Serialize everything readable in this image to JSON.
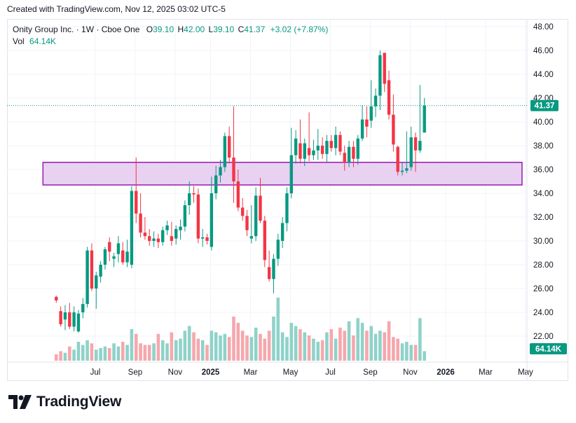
{
  "header": {
    "text": "Created with TradingView.com, Nov 12, 2025 03:02 UTC-5"
  },
  "legend": {
    "symbol": "Onity Group Inc. · 1W · Cboe One",
    "o_label": "O",
    "o_value": "39.10",
    "h_label": "H",
    "h_value": "42.00",
    "l_label": "L",
    "l_value": "39.10",
    "c_label": "C",
    "c_value": "41.37",
    "change": "+3.02 (+7.87%)",
    "vol_label": "Vol",
    "vol_value": "64.14K"
  },
  "footer": {
    "brand": "TradingView"
  },
  "colors": {
    "up": "#089981",
    "down": "#f23645",
    "vol_up": "#8fd2c9",
    "vol_down": "#f5a8ad",
    "zone_fill": "#e9d1f2",
    "zone_stroke": "#9c27b0"
  },
  "chart_data": {
    "type": "candlestick",
    "y_axis": {
      "min": 20.2,
      "max": 48.8,
      "ticks": [
        22,
        24,
        26,
        28,
        30,
        32,
        34,
        36,
        38,
        40,
        42,
        44,
        46,
        48
      ],
      "side": "right"
    },
    "x_axis": {
      "labels": [
        "Jul",
        "Sep",
        "Nov",
        "2025",
        "Mar",
        "May",
        "Jul",
        "Sep",
        "Nov",
        "2026",
        "Mar",
        "May"
      ],
      "label_bar_index": [
        5,
        14,
        23,
        31,
        40,
        49,
        58,
        67,
        76,
        84,
        93,
        102
      ]
    },
    "last_price": {
      "value": 41.37,
      "label": "41.37"
    },
    "volume_label": "64.14K",
    "zone": {
      "from_bar": -3,
      "to_bar": 105,
      "low": 34.7,
      "high": 36.6
    },
    "candles": [
      {
        "o": 25.3,
        "h": 25.4,
        "l": 24.8,
        "c": 25.0,
        "v": 0.2
      },
      {
        "o": 24.1,
        "h": 24.5,
        "l": 22.8,
        "c": 23.0,
        "v": 0.3
      },
      {
        "o": 23.4,
        "h": 24.6,
        "l": 22.5,
        "c": 24.0,
        "v": 0.25
      },
      {
        "o": 24.0,
        "h": 24.8,
        "l": 22.6,
        "c": 22.8,
        "v": 0.45
      },
      {
        "o": 22.8,
        "h": 24.5,
        "l": 22.4,
        "c": 24.0,
        "v": 0.35
      },
      {
        "o": 22.4,
        "h": 24.2,
        "l": 22.3,
        "c": 23.9,
        "v": 0.6
      },
      {
        "o": 24.0,
        "h": 25.2,
        "l": 23.5,
        "c": 24.7,
        "v": 0.5
      },
      {
        "o": 24.7,
        "h": 29.5,
        "l": 24.4,
        "c": 29.2,
        "v": 0.65
      },
      {
        "o": 29.2,
        "h": 29.8,
        "l": 25.8,
        "c": 26.0,
        "v": 0.55
      },
      {
        "o": 26.0,
        "h": 27.4,
        "l": 24.3,
        "c": 27.1,
        "v": 0.35
      },
      {
        "o": 27.0,
        "h": 28.3,
        "l": 26.5,
        "c": 28.0,
        "v": 0.4
      },
      {
        "o": 28.0,
        "h": 29.5,
        "l": 27.6,
        "c": 29.3,
        "v": 0.45
      },
      {
        "o": 29.9,
        "h": 30.3,
        "l": 28.3,
        "c": 29.1,
        "v": 0.4
      },
      {
        "o": 28.5,
        "h": 29.0,
        "l": 27.8,
        "c": 28.7,
        "v": 0.55
      },
      {
        "o": 28.9,
        "h": 30.4,
        "l": 28.2,
        "c": 29.8,
        "v": 0.45
      },
      {
        "o": 29.2,
        "h": 29.9,
        "l": 28.0,
        "c": 28.2,
        "v": 0.6
      },
      {
        "o": 28.2,
        "h": 30.1,
        "l": 27.8,
        "c": 29.1,
        "v": 0.5
      },
      {
        "o": 28.0,
        "h": 34.6,
        "l": 27.7,
        "c": 34.2,
        "v": 1.0
      },
      {
        "o": 34.2,
        "h": 37.0,
        "l": 31.5,
        "c": 32.3,
        "v": 0.85
      },
      {
        "o": 32.3,
        "h": 34.0,
        "l": 30.3,
        "c": 30.7,
        "v": 0.55
      },
      {
        "o": 30.7,
        "h": 32.0,
        "l": 30.1,
        "c": 30.4,
        "v": 0.5
      },
      {
        "o": 30.4,
        "h": 31.0,
        "l": 29.6,
        "c": 30.0,
        "v": 0.5
      },
      {
        "o": 30.0,
        "h": 30.8,
        "l": 29.5,
        "c": 30.2,
        "v": 0.55
      },
      {
        "o": 30.2,
        "h": 30.6,
        "l": 29.4,
        "c": 29.9,
        "v": 0.85
      },
      {
        "o": 29.9,
        "h": 31.2,
        "l": 29.6,
        "c": 30.9,
        "v": 0.65
      },
      {
        "o": 30.9,
        "h": 31.7,
        "l": 30.5,
        "c": 31.3,
        "v": 0.55
      },
      {
        "o": 30.4,
        "h": 31.6,
        "l": 29.6,
        "c": 30.0,
        "v": 0.9
      },
      {
        "o": 30.2,
        "h": 31.3,
        "l": 29.7,
        "c": 31.0,
        "v": 0.65
      },
      {
        "o": 30.9,
        "h": 31.8,
        "l": 30.1,
        "c": 31.2,
        "v": 0.7
      },
      {
        "o": 31.2,
        "h": 33.4,
        "l": 30.8,
        "c": 33.0,
        "v": 0.95
      },
      {
        "o": 33.0,
        "h": 35.0,
        "l": 32.2,
        "c": 34.0,
        "v": 1.1
      },
      {
        "o": 34.0,
        "h": 34.6,
        "l": 33.2,
        "c": 33.9,
        "v": 0.9
      },
      {
        "o": 33.9,
        "h": 34.4,
        "l": 29.8,
        "c": 30.2,
        "v": 0.7
      },
      {
        "o": 30.2,
        "h": 31.0,
        "l": 29.5,
        "c": 30.3,
        "v": 0.65
      },
      {
        "o": 30.3,
        "h": 30.6,
        "l": 29.7,
        "c": 30.0,
        "v": 0.5
      },
      {
        "o": 29.5,
        "h": 35.4,
        "l": 29.2,
        "c": 34.0,
        "v": 0.95
      },
      {
        "o": 34.0,
        "h": 36.3,
        "l": 33.5,
        "c": 35.5,
        "v": 0.9
      },
      {
        "o": 35.5,
        "h": 36.8,
        "l": 34.9,
        "c": 36.2,
        "v": 0.8
      },
      {
        "o": 36.2,
        "h": 39.1,
        "l": 35.8,
        "c": 38.8,
        "v": 0.85
      },
      {
        "o": 38.8,
        "h": 39.6,
        "l": 36.5,
        "c": 37.0,
        "v": 0.75
      },
      {
        "o": 37.0,
        "h": 41.3,
        "l": 33.2,
        "c": 35.0,
        "v": 1.4
      },
      {
        "o": 35.0,
        "h": 36.0,
        "l": 32.5,
        "c": 32.8,
        "v": 1.2
      },
      {
        "o": 32.8,
        "h": 33.6,
        "l": 31.7,
        "c": 32.1,
        "v": 0.95
      },
      {
        "o": 32.1,
        "h": 32.6,
        "l": 30.4,
        "c": 30.9,
        "v": 0.8
      },
      {
        "o": 30.2,
        "h": 33.0,
        "l": 29.8,
        "c": 30.4,
        "v": 0.75
      },
      {
        "o": 30.4,
        "h": 34.5,
        "l": 30.0,
        "c": 33.8,
        "v": 1.05
      },
      {
        "o": 33.8,
        "h": 35.3,
        "l": 31.5,
        "c": 31.7,
        "v": 0.85
      },
      {
        "o": 31.7,
        "h": 32.1,
        "l": 27.8,
        "c": 28.4,
        "v": 0.7
      },
      {
        "o": 27.8,
        "h": 29.2,
        "l": 26.6,
        "c": 26.8,
        "v": 0.95
      },
      {
        "o": 26.8,
        "h": 28.9,
        "l": 25.6,
        "c": 28.5,
        "v": 1.4
      },
      {
        "o": 28.5,
        "h": 30.6,
        "l": 27.9,
        "c": 30.1,
        "v": 2.0
      },
      {
        "o": 30.0,
        "h": 32.0,
        "l": 29.4,
        "c": 31.5,
        "v": 0.9
      },
      {
        "o": 31.5,
        "h": 34.5,
        "l": 30.8,
        "c": 34.0,
        "v": 0.75
      },
      {
        "o": 34.0,
        "h": 39.5,
        "l": 33.6,
        "c": 37.2,
        "v": 1.2
      },
      {
        "o": 37.2,
        "h": 39.3,
        "l": 36.5,
        "c": 38.6,
        "v": 1.1
      },
      {
        "o": 38.2,
        "h": 40.2,
        "l": 36.5,
        "c": 36.9,
        "v": 1.0
      },
      {
        "o": 36.9,
        "h": 38.6,
        "l": 36.3,
        "c": 38.2,
        "v": 0.9
      },
      {
        "o": 37.8,
        "h": 40.8,
        "l": 36.7,
        "c": 37.2,
        "v": 0.8
      },
      {
        "o": 37.2,
        "h": 38.5,
        "l": 36.8,
        "c": 37.6,
        "v": 0.7
      },
      {
        "o": 37.6,
        "h": 39.4,
        "l": 36.8,
        "c": 38.0,
        "v": 0.6
      },
      {
        "o": 38.0,
        "h": 38.7,
        "l": 36.9,
        "c": 37.3,
        "v": 0.65
      },
      {
        "o": 37.3,
        "h": 38.9,
        "l": 36.6,
        "c": 38.4,
        "v": 0.9
      },
      {
        "o": 38.4,
        "h": 38.9,
        "l": 37.5,
        "c": 37.8,
        "v": 1.0
      },
      {
        "o": 37.8,
        "h": 39.6,
        "l": 37.2,
        "c": 38.9,
        "v": 0.7
      },
      {
        "o": 38.9,
        "h": 39.2,
        "l": 37.2,
        "c": 37.5,
        "v": 1.05
      },
      {
        "o": 37.4,
        "h": 38.0,
        "l": 35.9,
        "c": 36.6,
        "v": 0.95
      },
      {
        "o": 36.6,
        "h": 38.4,
        "l": 36.2,
        "c": 37.9,
        "v": 1.25
      },
      {
        "o": 37.9,
        "h": 38.4,
        "l": 36.2,
        "c": 36.9,
        "v": 0.8
      },
      {
        "o": 36.9,
        "h": 38.9,
        "l": 36.4,
        "c": 38.6,
        "v": 1.35
      },
      {
        "o": 38.6,
        "h": 41.4,
        "l": 38.4,
        "c": 40.2,
        "v": 1.2
      },
      {
        "o": 40.2,
        "h": 41.3,
        "l": 38.7,
        "c": 39.6,
        "v": 0.95
      },
      {
        "o": 40.1,
        "h": 43.5,
        "l": 39.5,
        "c": 41.3,
        "v": 1.1
      },
      {
        "o": 41.3,
        "h": 42.8,
        "l": 40.4,
        "c": 42.2,
        "v": 0.85
      },
      {
        "o": 42.2,
        "h": 46.0,
        "l": 41.0,
        "c": 45.6,
        "v": 0.95
      },
      {
        "o": 45.8,
        "h": 45.8,
        "l": 42.5,
        "c": 43.2,
        "v": 0.9
      },
      {
        "o": 43.5,
        "h": 44.3,
        "l": 40.2,
        "c": 40.6,
        "v": 1.25
      },
      {
        "o": 40.6,
        "h": 42.3,
        "l": 37.5,
        "c": 38.1,
        "v": 0.75
      },
      {
        "o": 37.9,
        "h": 38.0,
        "l": 35.5,
        "c": 35.8,
        "v": 0.7
      },
      {
        "o": 35.8,
        "h": 36.6,
        "l": 35.5,
        "c": 35.9,
        "v": 0.55
      },
      {
        "o": 35.9,
        "h": 39.2,
        "l": 35.7,
        "c": 36.1,
        "v": 0.6
      },
      {
        "o": 36.2,
        "h": 39.6,
        "l": 35.9,
        "c": 38.7,
        "v": 0.5
      },
      {
        "o": 38.7,
        "h": 39.1,
        "l": 35.8,
        "c": 37.6,
        "v": 0.5
      },
      {
        "o": 37.6,
        "h": 43.1,
        "l": 37.4,
        "c": 38.4,
        "v": 1.35
      },
      {
        "o": 39.1,
        "h": 42.0,
        "l": 39.1,
        "c": 41.37,
        "v": 0.3
      }
    ]
  }
}
